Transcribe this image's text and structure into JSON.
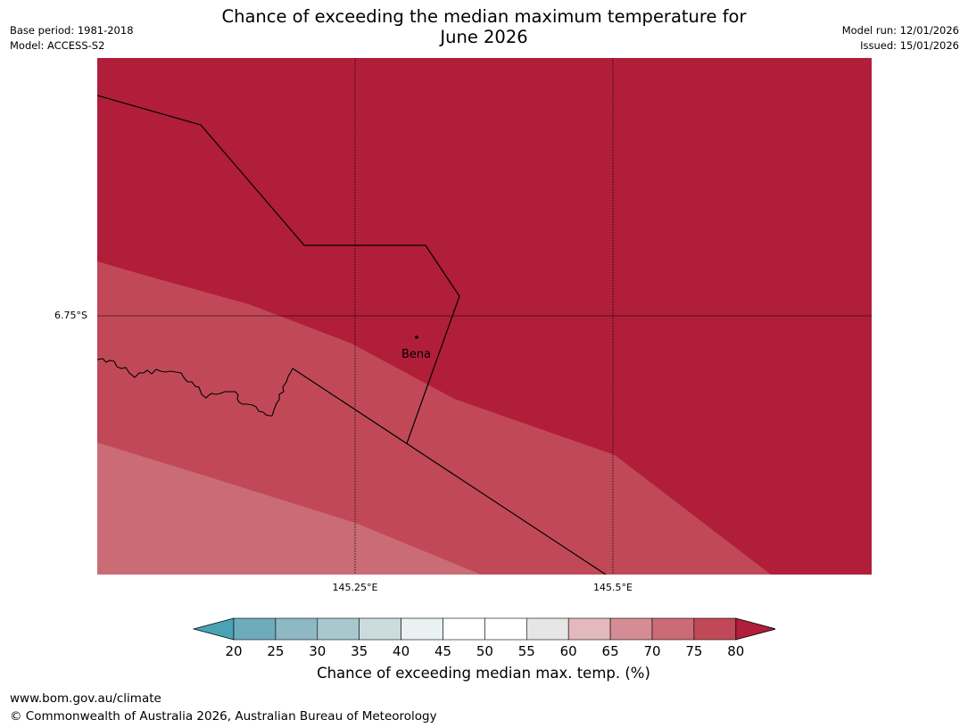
{
  "header": {
    "title_line1": "Chance of exceeding the median maximum temperature for",
    "title_line2": "June 2026",
    "base_period": "Base period: 1981-2018",
    "model": "Model: ACCESS-S2",
    "model_run": "Model run: 12/01/2026",
    "issued": "Issued: 15/01/2026"
  },
  "map": {
    "place_label": "Bena",
    "lat_label": "6.75°S",
    "lon_labels": [
      "145.25°E",
      "145.5°E"
    ],
    "colors": {
      "band_80_plus": "#b01e3a",
      "band_75_80": "#c14957",
      "band_70_75": "#cb6b76",
      "boundary": "#000000"
    }
  },
  "legend": {
    "title": "Chance of exceeding median max. temp. (%)",
    "ticks": [
      "20",
      "25",
      "30",
      "35",
      "40",
      "45",
      "50",
      "55",
      "60",
      "65",
      "70",
      "75",
      "80"
    ],
    "colors": [
      "#4aa3b4",
      "#6eacbc",
      "#8eb8c4",
      "#a9c7ce",
      "#cbdcdf",
      "#eaf1f3",
      "#ffffff",
      "#ffffff",
      "#e6e6e6",
      "#e3b9bd",
      "#d58d95",
      "#cb6b76",
      "#c14957",
      "#b01e3a"
    ]
  },
  "footer": {
    "url": "www.bom.gov.au/climate",
    "copyright": "© Commonwealth of Australia 2026, Australian Bureau of Meteorology"
  }
}
